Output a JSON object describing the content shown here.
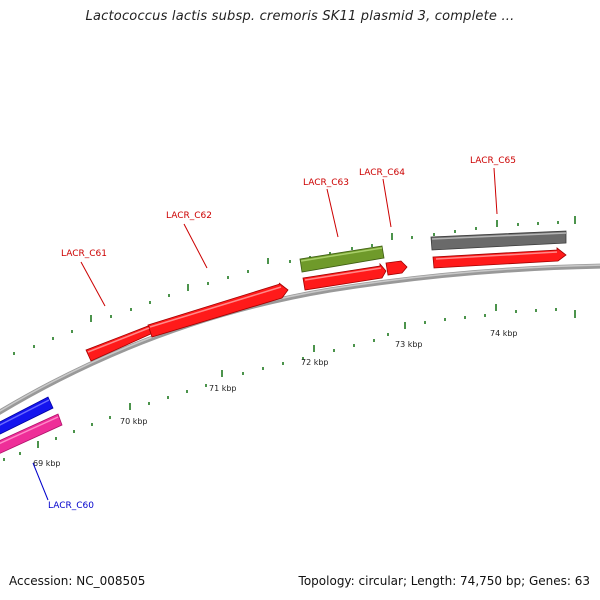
{
  "title": "Lactococcus lactis subsp. cremoris SK11 plasmid 3, complete ...",
  "footer": {
    "accession": "Accession: NC_008505",
    "summary": "Topology: circular; Length: 74,750 bp; Genes: 63"
  },
  "map": {
    "scale_labels": [
      {
        "text": "69 kbp",
        "kbp": 69
      },
      {
        "text": "70 kbp",
        "kbp": 70
      },
      {
        "text": "71 kbp",
        "kbp": 71
      },
      {
        "text": "72 kbp",
        "kbp": 72
      },
      {
        "text": "73 kbp",
        "kbp": 73
      },
      {
        "text": "74 kbp",
        "kbp": 74
      }
    ],
    "genes": [
      {
        "name": "LACR_C60",
        "color": "#0000cc"
      },
      {
        "name": "LACR_C61",
        "color": "#cc0000"
      },
      {
        "name": "LACR_C62",
        "color": "#cc0000"
      },
      {
        "name": "LACR_C63",
        "color": "#cc0000"
      },
      {
        "name": "LACR_C64",
        "color": "#cc0000"
      },
      {
        "name": "LACR_C65",
        "color": "#cc0000"
      }
    ],
    "colors": {
      "backbone": "#8a8a8a",
      "tick": "#1f7a1f",
      "cds": "#ff1a1a",
      "blue_feature": "#1010ee",
      "pink_feature": "#f0309a",
      "olive_feature": "#6f9a2a",
      "gray_feature": "#6a6a6a"
    }
  }
}
